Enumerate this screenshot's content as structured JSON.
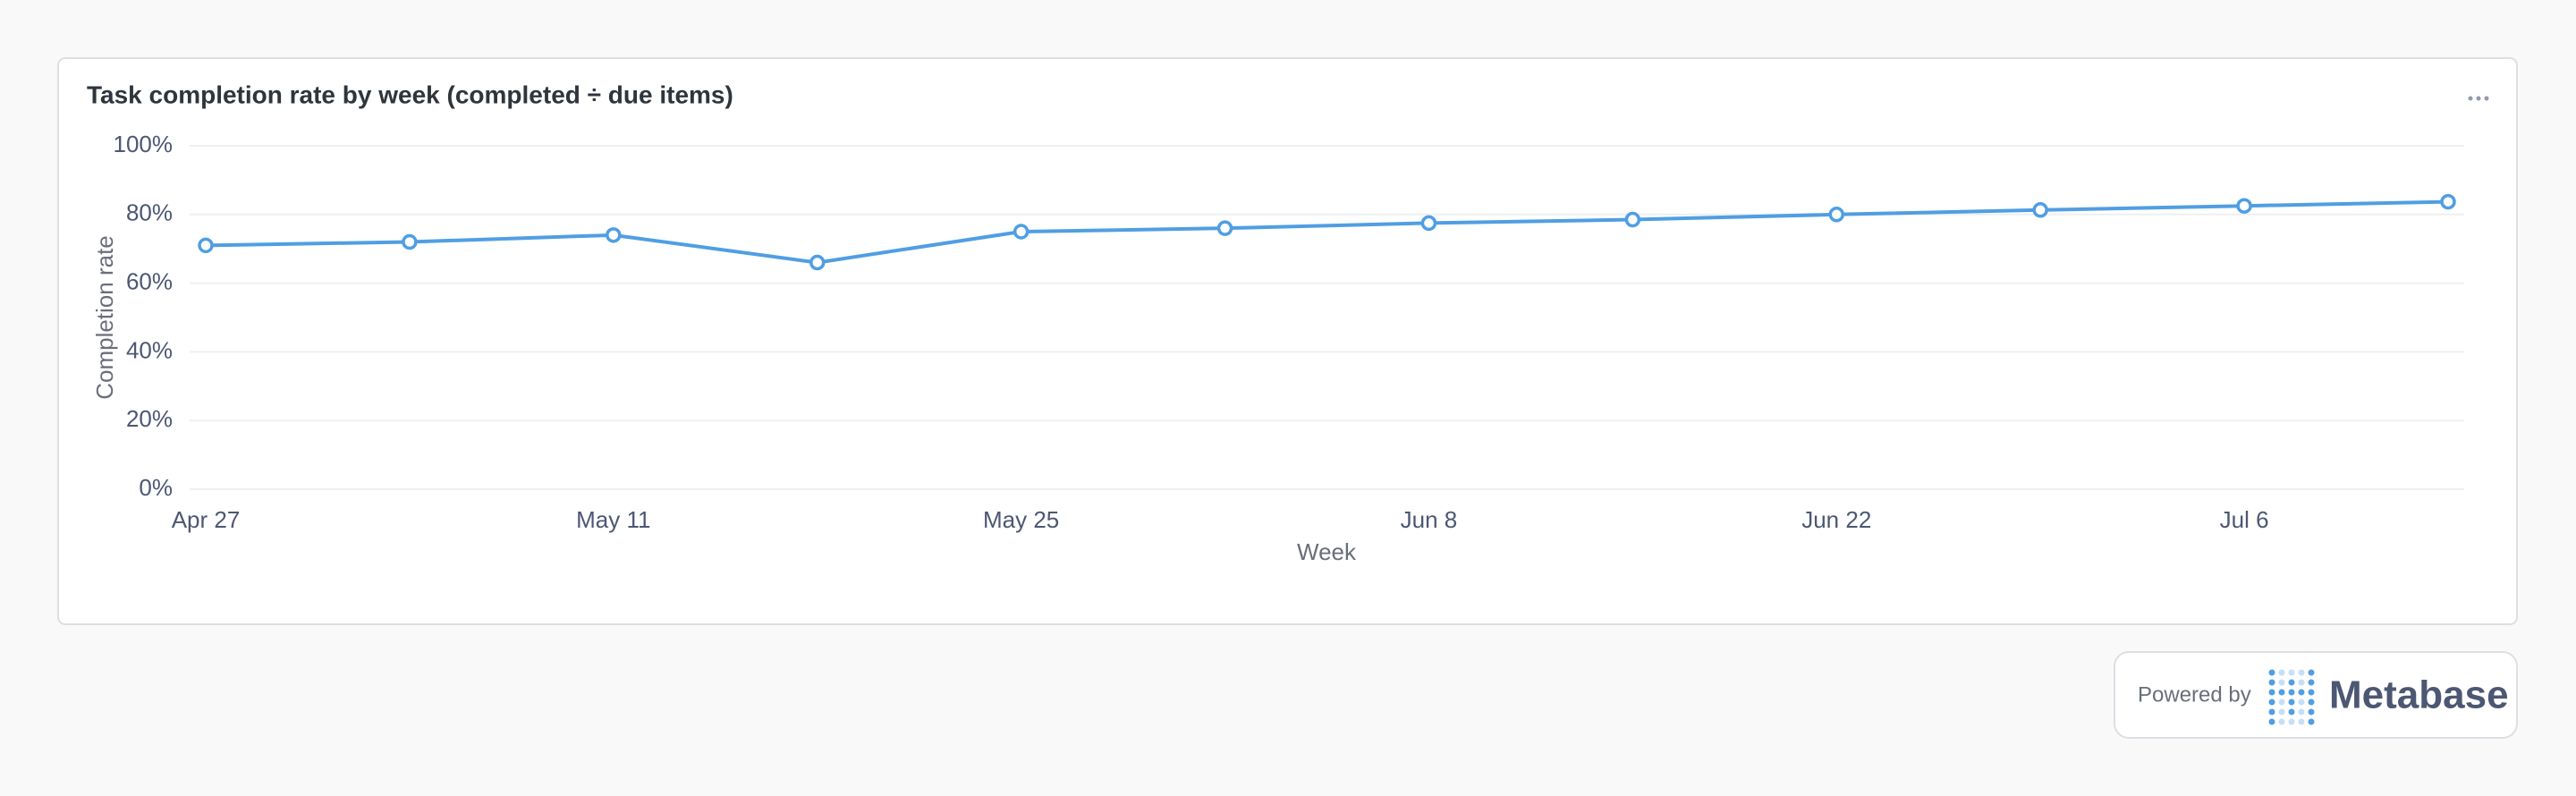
{
  "chart_data": {
    "type": "line",
    "title": "Task completion rate by week (completed ÷ due items)",
    "x_label": "Week",
    "y_label": "Completion rate",
    "categories": [
      "Apr 27",
      null,
      "May 11",
      null,
      "May 25",
      null,
      "Jun 8",
      null,
      "Jun 22",
      null,
      "Jul 6",
      null
    ],
    "values": [
      71,
      72,
      74,
      66,
      75,
      76,
      77.5,
      78.5,
      80,
      81.3,
      82.5,
      83.7
    ],
    "color": "#509ee3",
    "ylim": [
      0,
      100
    ],
    "yticks": [
      {
        "value": 0,
        "label": "0%"
      },
      {
        "value": 20,
        "label": "20%"
      },
      {
        "value": 40,
        "label": "40%"
      },
      {
        "value": 60,
        "label": "60%"
      },
      {
        "value": 80,
        "label": "80%"
      },
      {
        "value": 100,
        "label": "100%"
      }
    ],
    "grid": true
  },
  "footer": {
    "powered_by": "Powered by",
    "brand": "Metabase"
  }
}
